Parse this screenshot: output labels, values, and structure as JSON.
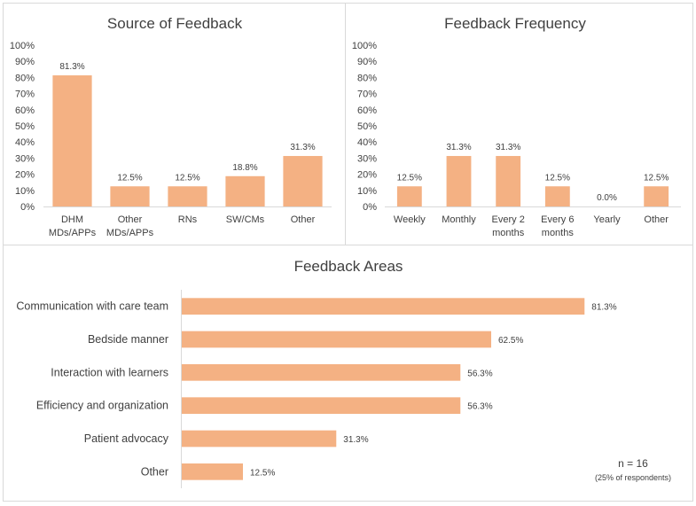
{
  "chart_data": [
    {
      "type": "bar",
      "title": "Source of Feedback",
      "categories": [
        [
          "DHM",
          "MDs/APPs"
        ],
        [
          "Other",
          "MDs/APPs"
        ],
        [
          "RNs"
        ],
        [
          "SW/CMs"
        ],
        [
          "Other"
        ]
      ],
      "values": [
        81.3,
        12.5,
        12.5,
        18.8,
        31.3
      ],
      "value_labels": [
        "81.3%",
        "12.5%",
        "12.5%",
        "18.8%",
        "31.3%"
      ],
      "ylim": [
        0,
        100
      ],
      "yticks": [
        "0%",
        "10%",
        "20%",
        "30%",
        "40%",
        "50%",
        "60%",
        "70%",
        "80%",
        "90%",
        "100%"
      ],
      "xlabel": "",
      "ylabel": "",
      "grid": false,
      "color": "#f4b183"
    },
    {
      "type": "bar",
      "title": "Feedback Frequency",
      "categories": [
        [
          "Weekly"
        ],
        [
          "Monthly"
        ],
        [
          "Every 2",
          "months"
        ],
        [
          "Every 6",
          "months"
        ],
        [
          "Yearly"
        ],
        [
          "Other"
        ]
      ],
      "values": [
        12.5,
        31.3,
        31.3,
        12.5,
        0.0,
        12.5
      ],
      "value_labels": [
        "12.5%",
        "31.3%",
        "31.3%",
        "12.5%",
        "0.0%",
        "12.5%"
      ],
      "ylim": [
        0,
        100
      ],
      "yticks": [
        "0%",
        "10%",
        "20%",
        "30%",
        "40%",
        "50%",
        "60%",
        "70%",
        "80%",
        "90%",
        "100%"
      ],
      "xlabel": "",
      "ylabel": "",
      "grid": false,
      "color": "#f4b183"
    },
    {
      "type": "bar",
      "orientation": "horizontal",
      "title": "Feedback Areas",
      "categories": [
        "Communication with care team",
        "Bedside manner",
        "Interaction with learners",
        "Efficiency and organization",
        "Patient advocacy",
        "Other"
      ],
      "values": [
        81.3,
        62.5,
        56.3,
        56.3,
        31.3,
        12.5
      ],
      "value_labels": [
        "81.3%",
        "62.5%",
        "56.3%",
        "56.3%",
        "31.3%",
        "12.5%"
      ],
      "xlim": [
        0,
        100
      ],
      "xlabel": "",
      "ylabel": "",
      "grid": false,
      "color": "#f4b183"
    }
  ],
  "annotation": {
    "n_label": "n = 16",
    "respondents_label": "(25% of respondents)"
  }
}
